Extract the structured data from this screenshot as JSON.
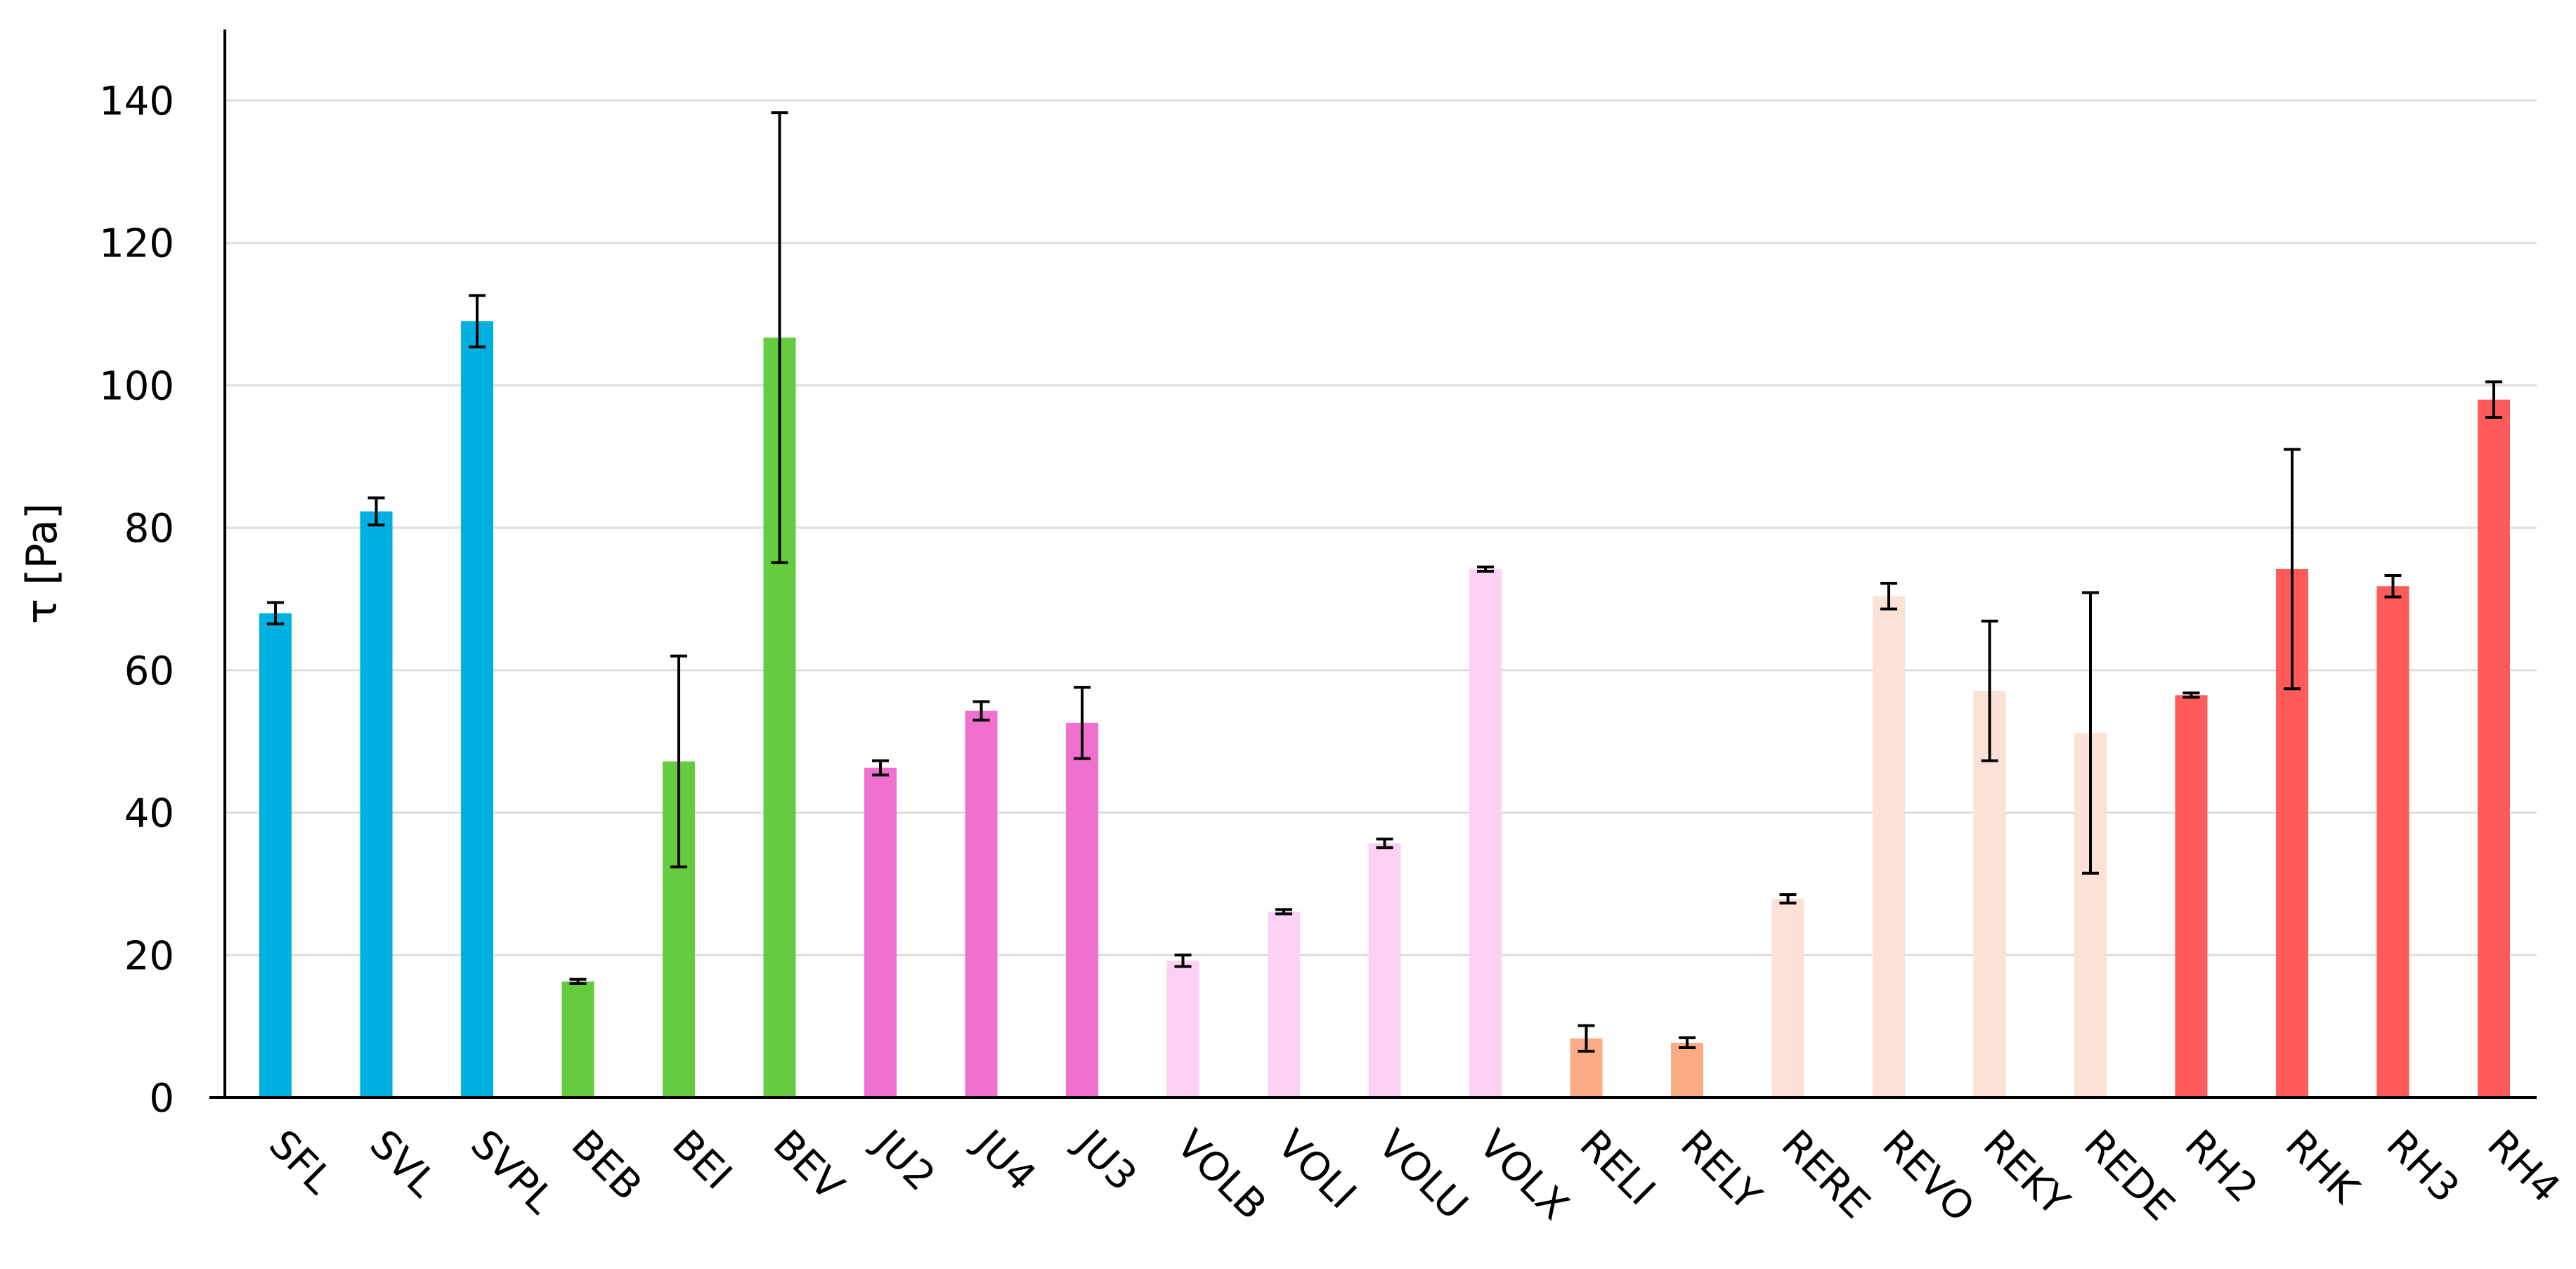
{
  "chart_data": {
    "type": "bar",
    "title": "",
    "xlabel": "",
    "ylabel": "τ [Pa]",
    "ylim": [
      0,
      150
    ],
    "yticks": [
      0,
      20,
      40,
      60,
      80,
      100,
      120,
      140
    ],
    "grid": true,
    "legend": "none",
    "categories": [
      "SFL",
      "SVL",
      "SVPL",
      "BEB",
      "BEI",
      "BEV",
      "JU2",
      "JU4",
      "JU3",
      "VOLB",
      "VOLI",
      "VOLU",
      "VOLX",
      "RELI",
      "RELY",
      "RERE",
      "REVO",
      "REKY",
      "REDE",
      "RH2",
      "RHK",
      "RH3",
      "RH4"
    ],
    "values": [
      68,
      82.3,
      109,
      16.3,
      47.2,
      106.7,
      46.3,
      54.3,
      52.6,
      19.2,
      26.1,
      35.7,
      74.2,
      8.3,
      7.7,
      27.9,
      70.4,
      57.1,
      51.2,
      56.5,
      74.2,
      71.8,
      98
    ],
    "errors": [
      1.5,
      1.9,
      3.6,
      0.3,
      14.8,
      31.6,
      1.0,
      1.3,
      5.0,
      0.8,
      0.3,
      0.6,
      0.3,
      1.8,
      0.7,
      0.6,
      1.8,
      9.8,
      19.7,
      0.3,
      16.8,
      1.5,
      2.5
    ],
    "colors": [
      "#00B0E0",
      "#00B0E0",
      "#00B0E0",
      "#66CC3F",
      "#66CC3F",
      "#66CC3F",
      "#F070CF",
      "#F070CF",
      "#F070CF",
      "#FCD1F1",
      "#FCD1F1",
      "#FCD1F1",
      "#FCD1F1",
      "#FBAB85",
      "#FBAB85",
      "#FDE1D6",
      "#FDE1D6",
      "#FDE1D6",
      "#FDE1D6",
      "#FF5B5B",
      "#FF5B5B",
      "#FF5B5B",
      "#FF5B5B"
    ]
  }
}
